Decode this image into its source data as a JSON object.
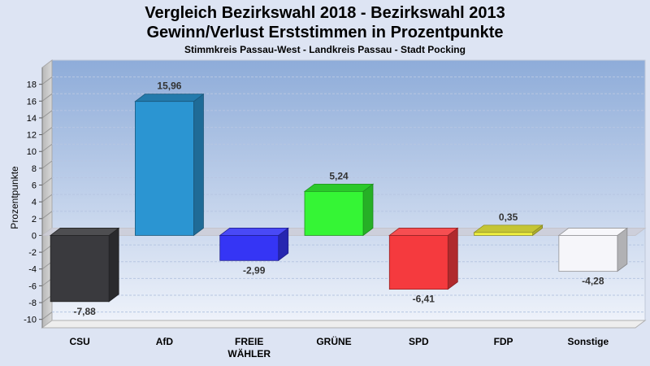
{
  "chart_data": {
    "type": "bar",
    "title": "Vergleich Bezirkswahl 2018 - Bezirkswahl 2013",
    "title2": "Gewinn/Verlust Erststimmen in Prozentpunkte",
    "subtitle": "Stimmkreis Passau-West - Landkreis Passau - Stadt Pocking",
    "ylabel": "Prozentpunkte",
    "xlabel": "",
    "ylim": [
      -11,
      20
    ],
    "yticks": [
      -10,
      -8,
      -6,
      -4,
      -2,
      0,
      2,
      4,
      6,
      8,
      10,
      12,
      14,
      16,
      18
    ],
    "grid": true,
    "categories": [
      "CSU",
      "AfD",
      "FREIE WÄHLER",
      "GRÜNE",
      "SPD",
      "FDP",
      "Sonstige"
    ],
    "category_lines": [
      [
        "CSU"
      ],
      [
        "AfD"
      ],
      [
        "FREIE",
        "WÄHLER"
      ],
      [
        "GRÜNE"
      ],
      [
        "SPD"
      ],
      [
        "FDP"
      ],
      [
        "Sonstige"
      ]
    ],
    "values": [
      -7.88,
      15.96,
      -2.99,
      5.24,
      -6.41,
      0.35,
      -4.28
    ],
    "value_labels": [
      "-7,88",
      "15,96",
      "-2,99",
      "5,24",
      "-6,41",
      "0,35",
      "-4,28"
    ],
    "colors": [
      "#3a3a3e",
      "#2b95d2",
      "#3535f5",
      "#35f535",
      "#f53a3e",
      "#f0f040",
      "#f6f6fa"
    ]
  }
}
